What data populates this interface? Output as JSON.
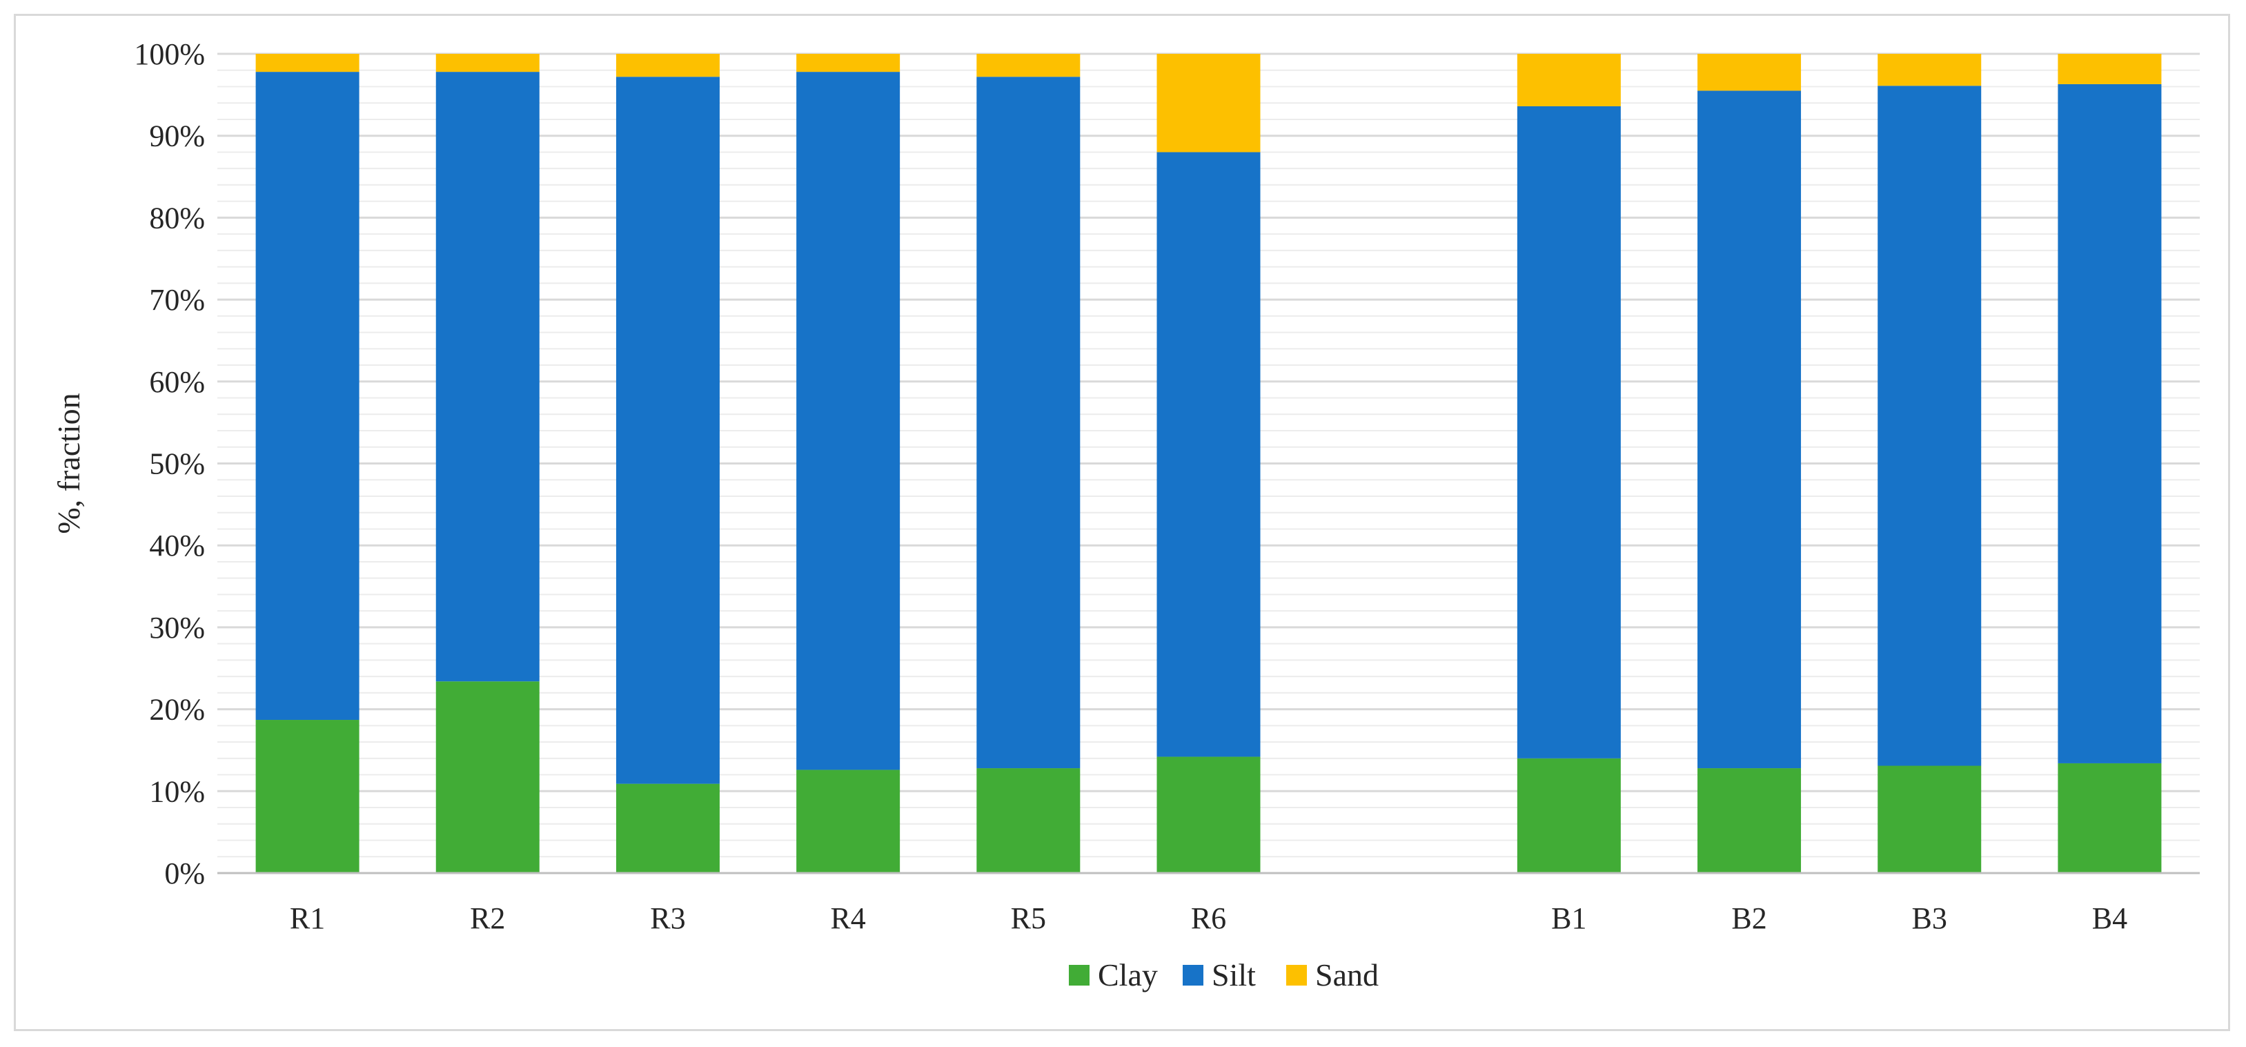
{
  "chart_data": {
    "type": "bar",
    "stacked": true,
    "categories": [
      "R1",
      "R2",
      "R3",
      "R4",
      "R5",
      "R6",
      "",
      "B1",
      "B2",
      "B3",
      "B4"
    ],
    "series": [
      {
        "name": "Clay",
        "color": "#41ac36",
        "values": [
          18.7,
          23.4,
          10.9,
          12.6,
          12.8,
          14.2,
          null,
          14.0,
          12.8,
          13.1,
          13.4
        ]
      },
      {
        "name": "Silt",
        "color": "#1773c8",
        "values": [
          79.1,
          74.4,
          86.3,
          85.2,
          84.4,
          73.8,
          null,
          79.6,
          82.7,
          83.0,
          82.9
        ]
      },
      {
        "name": "Sand",
        "color": "#fdc000",
        "values": [
          2.2,
          2.2,
          2.8,
          2.2,
          2.8,
          12.0,
          null,
          6.4,
          4.5,
          3.9,
          3.7
        ]
      }
    ],
    "ylabel": "%, fraction",
    "xlabel": "",
    "title": "",
    "ylim": [
      0,
      100
    ],
    "yticks": [
      "0%",
      "10%",
      "20%",
      "30%",
      "40%",
      "50%",
      "60%",
      "70%",
      "80%",
      "90%",
      "100%"
    ],
    "grid": {
      "major": true,
      "minor": true
    },
    "legend": "bottom"
  }
}
